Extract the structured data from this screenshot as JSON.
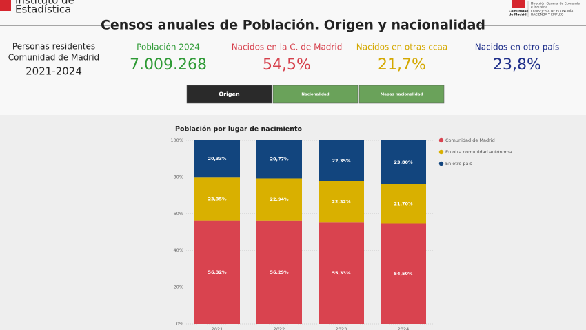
{
  "header": {
    "logo_left": [
      "Instituto de",
      "Estadística"
    ],
    "logo_right": [
      "Dirección General de Economía",
      "e Industria",
      "CONSEJERÍA DE ECONOMÍA,",
      "HACIENDA Y EMPLEO",
      "Comunidad",
      "de Madrid"
    ],
    "title": "Censos anuales de Población. Origen y nacionalidad"
  },
  "summary": {
    "lines": [
      "Personas residentes",
      "Comunidad de Madrid",
      "2021-2024"
    ]
  },
  "kpis": [
    {
      "label": "Población 2024",
      "value": "7.009.268",
      "color": "#2e9a35"
    },
    {
      "label": "Nacidos en la C. de Madrid",
      "value": "54,5%",
      "color": "#d6404c"
    },
    {
      "label": "Nacidos en otras ccaa",
      "value": "21,7%",
      "color": "#d4a800"
    },
    {
      "label": "Nacidos en otro país",
      "value": "23,8%",
      "color": "#1f2f8a"
    }
  ],
  "buttons": [
    "Origen",
    "Nacionalidad",
    "Mapas nacionalidad"
  ],
  "chart_data": {
    "type": "stacked_bar",
    "title": "Población por lugar de nacimiento",
    "categories": [
      "2021",
      "2022",
      "2023",
      "2024"
    ],
    "series": [
      {
        "name": "Comunidad de Madrid",
        "color": "#d9434f",
        "values": [
          56.32,
          56.29,
          55.33,
          54.5
        ],
        "value_labels": [
          "56,32%",
          "56,29%",
          "55,33%",
          "54,50%"
        ]
      },
      {
        "name": "En otra comunidad autónoma",
        "color": "#d9b000",
        "values": [
          23.35,
          22.94,
          22.32,
          21.7
        ],
        "value_labels": [
          "23,35%",
          "22,94%",
          "22,32%",
          "21,70%"
        ]
      },
      {
        "name": "En otro país",
        "color": "#12457e",
        "values": [
          20.33,
          20.77,
          22.35,
          23.8
        ],
        "value_labels": [
          "20,33%",
          "20,77%",
          "22,35%",
          "23,80%"
        ]
      }
    ],
    "ylim": [
      0,
      100
    ],
    "yticks": [
      {
        "value": 0,
        "label": "0%"
      },
      {
        "value": 20,
        "label": "20%"
      },
      {
        "value": 40,
        "label": "40%"
      },
      {
        "value": 60,
        "label": "60%"
      },
      {
        "value": 80,
        "label": "80%"
      },
      {
        "value": 100,
        "label": "100%"
      }
    ],
    "grid": true,
    "legend": "right"
  }
}
